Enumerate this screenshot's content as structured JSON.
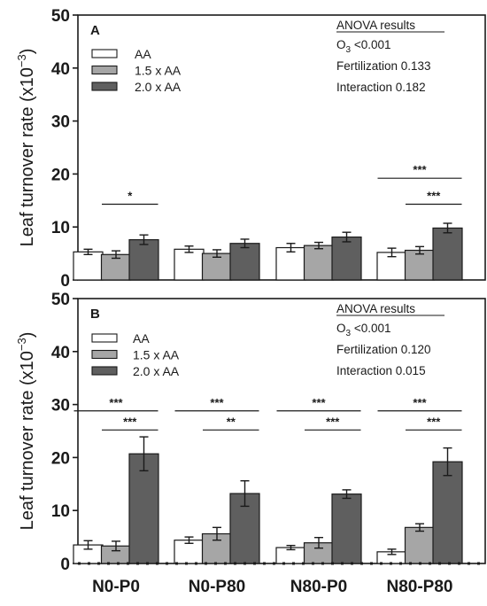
{
  "colors": {
    "AA": "#ffffff",
    "1.5 x AA": "#a6a6a6",
    "2.0 x AA": "#5f5f5f",
    "stroke": "#1a1a1a"
  },
  "chart_data": [
    {
      "type": "bar",
      "panel": "A",
      "ylabel": "Leaf turnover rate (x10^-3)",
      "ylim": [
        0,
        50
      ],
      "yticks": [
        0,
        10,
        20,
        30,
        40,
        50
      ],
      "categories": [
        "N0-P0",
        "N0-P80",
        "N80-P0",
        "N80-P80"
      ],
      "series": [
        {
          "name": "AA",
          "values": [
            5.3,
            5.8,
            6.1,
            5.2
          ],
          "errors": [
            0.5,
            0.6,
            0.8,
            0.8
          ]
        },
        {
          "name": "1.5 x AA",
          "values": [
            4.8,
            5.0,
            6.5,
            5.6
          ],
          "errors": [
            0.7,
            0.7,
            0.6,
            0.7
          ]
        },
        {
          "name": "2.0 x AA",
          "values": [
            7.6,
            6.9,
            8.1,
            9.8
          ],
          "errors": [
            0.9,
            0.8,
            0.9,
            0.9
          ]
        }
      ],
      "legend_position": "top-left",
      "anova": {
        "title": "ANOVA results",
        "o3": "<0.001",
        "fertilization": "0.133",
        "interaction": "0.182"
      },
      "significance": [
        {
          "category": 0,
          "from": 1,
          "to": 2,
          "label": "*",
          "y": 14.3
        },
        {
          "category": 3,
          "from": 0,
          "to": 2,
          "label": "***",
          "y": 19.2
        },
        {
          "category": 3,
          "from": 1,
          "to": 2,
          "label": "***",
          "y": 14.3
        }
      ]
    },
    {
      "type": "bar",
      "panel": "B",
      "ylabel": "Leaf turnover rate (x10^-3)",
      "ylim": [
        0,
        50
      ],
      "yticks": [
        0,
        10,
        20,
        30,
        40,
        50
      ],
      "categories": [
        "N0-P0",
        "N0-P80",
        "N80-P0",
        "N80-P80"
      ],
      "series": [
        {
          "name": "AA",
          "values": [
            3.5,
            4.4,
            3.0,
            2.2
          ],
          "errors": [
            0.8,
            0.6,
            0.4,
            0.5
          ]
        },
        {
          "name": "1.5 x AA",
          "values": [
            3.3,
            5.6,
            3.9,
            6.8
          ],
          "errors": [
            0.9,
            1.2,
            1.0,
            0.7
          ]
        },
        {
          "name": "2.0 x AA",
          "values": [
            20.7,
            13.2,
            13.1,
            19.2
          ],
          "errors": [
            3.2,
            2.4,
            0.8,
            2.6
          ]
        }
      ],
      "legend_position": "top-left",
      "anova": {
        "title": "ANOVA results",
        "o3": "<0.001",
        "fertilization": "0.120",
        "interaction": "0.015"
      },
      "significance": [
        {
          "category": 0,
          "from": 0,
          "to": 2,
          "label": "***",
          "y": 28.8
        },
        {
          "category": 0,
          "from": 1,
          "to": 2,
          "label": "***",
          "y": 25.2
        },
        {
          "category": 1,
          "from": 0,
          "to": 2,
          "label": "***",
          "y": 28.8
        },
        {
          "category": 1,
          "from": 1,
          "to": 2,
          "label": "**",
          "y": 25.2
        },
        {
          "category": 2,
          "from": 0,
          "to": 2,
          "label": "***",
          "y": 28.8
        },
        {
          "category": 2,
          "from": 1,
          "to": 2,
          "label": "***",
          "y": 25.2
        },
        {
          "category": 3,
          "from": 0,
          "to": 2,
          "label": "***",
          "y": 28.8
        },
        {
          "category": 3,
          "from": 1,
          "to": 2,
          "label": "***",
          "y": 25.2
        }
      ]
    }
  ]
}
